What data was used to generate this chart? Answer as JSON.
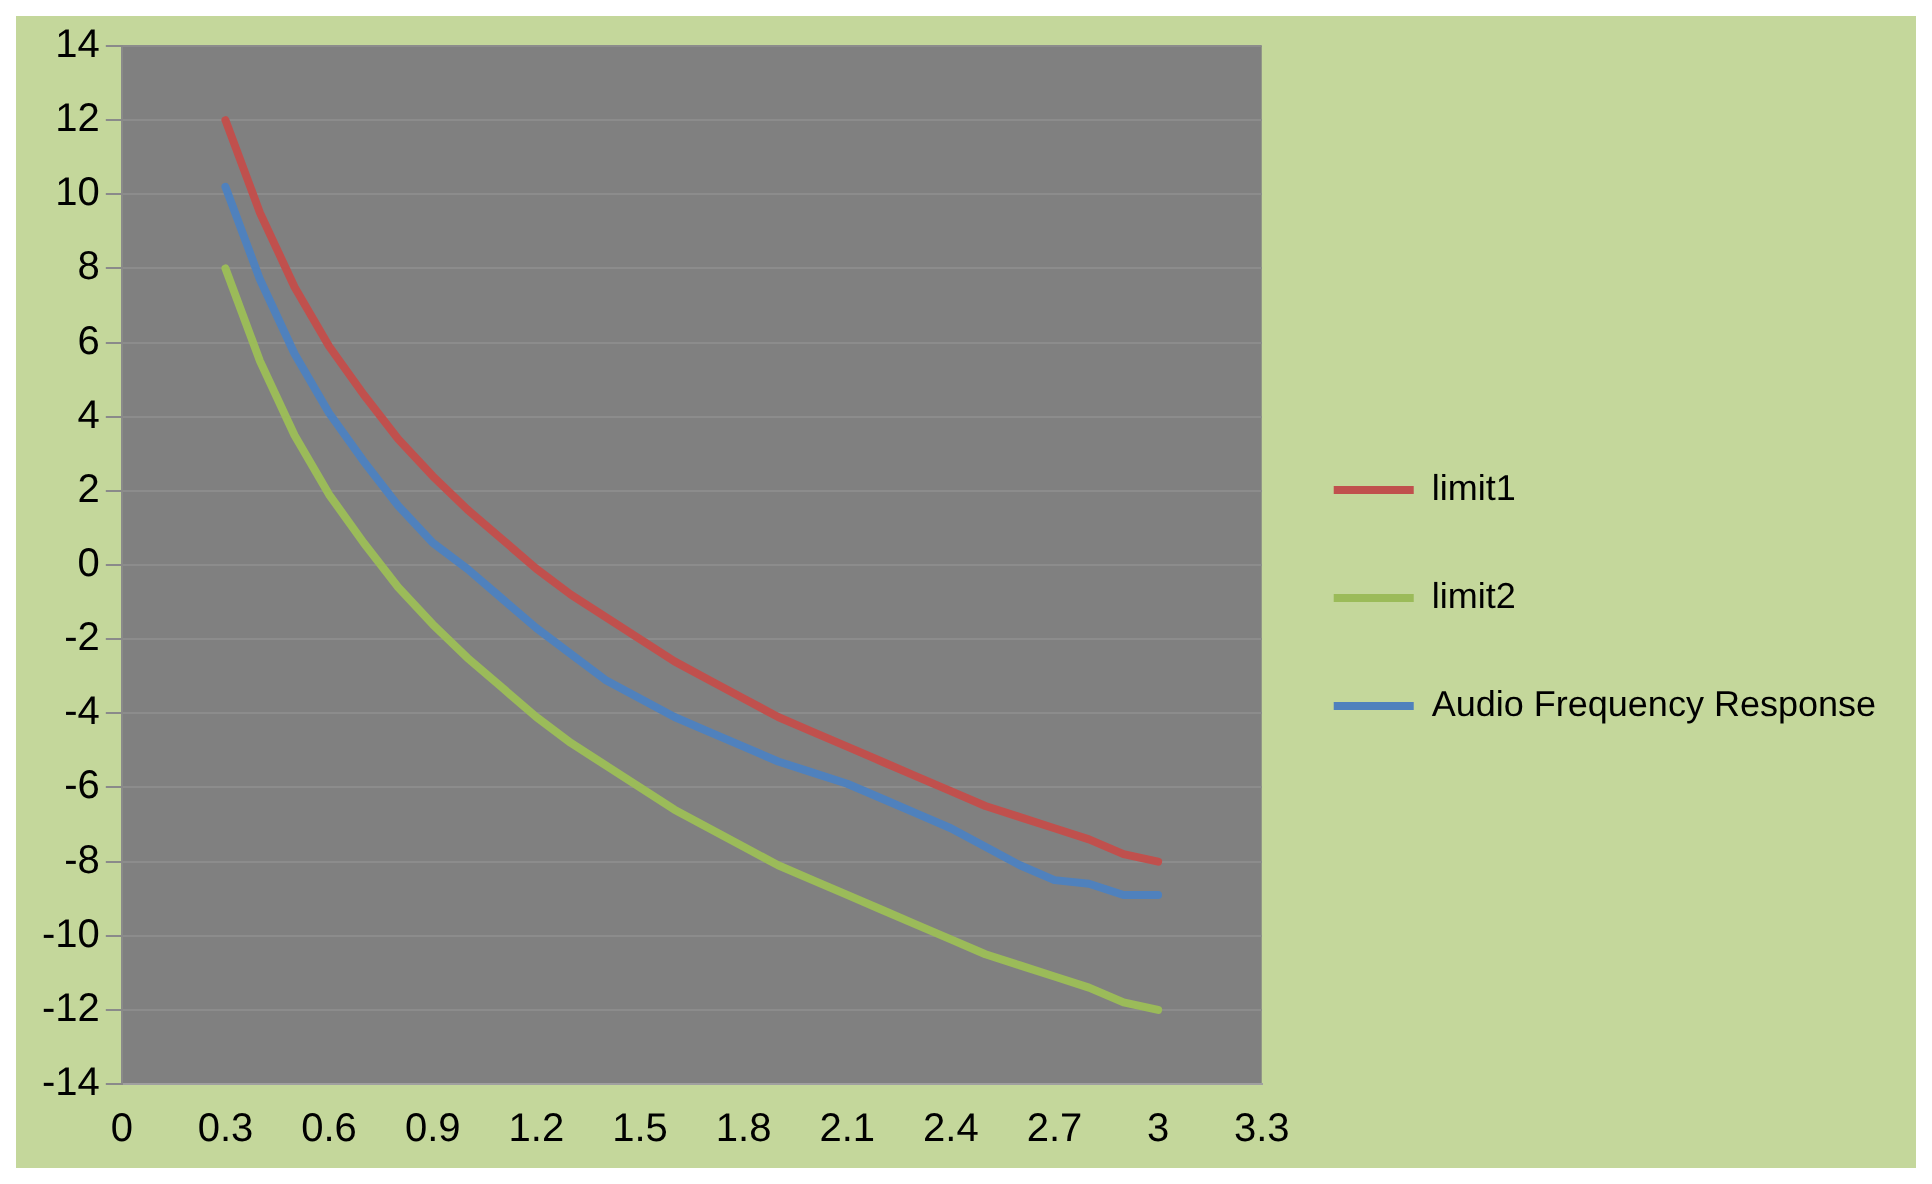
{
  "chart_data": {
    "type": "line",
    "x": [
      0.3,
      0.4,
      0.5,
      0.6,
      0.7,
      0.8,
      0.9,
      1.0,
      1.1,
      1.2,
      1.3,
      1.4,
      1.5,
      1.6,
      1.7,
      1.8,
      1.9,
      2.0,
      2.1,
      2.2,
      2.3,
      2.4,
      2.5,
      2.6,
      2.7,
      2.8,
      2.9,
      3.0
    ],
    "series": [
      {
        "name": "limit1",
        "color": "#c0504d",
        "values": [
          12.0,
          9.5,
          7.5,
          5.9,
          4.6,
          3.4,
          2.4,
          1.5,
          0.7,
          -0.1,
          -0.8,
          -1.4,
          -2.0,
          -2.6,
          -3.1,
          -3.6,
          -4.1,
          -4.5,
          -4.9,
          -5.3,
          -5.7,
          -6.1,
          -6.5,
          -6.8,
          -7.1,
          -7.4,
          -7.8,
          -8.0
        ]
      },
      {
        "name": "limit2",
        "color": "#9bbb59",
        "values": [
          8.0,
          5.5,
          3.5,
          1.9,
          0.6,
          -0.6,
          -1.6,
          -2.5,
          -3.3,
          -4.1,
          -4.8,
          -5.4,
          -6.0,
          -6.6,
          -7.1,
          -7.6,
          -8.1,
          -8.5,
          -8.9,
          -9.3,
          -9.7,
          -10.1,
          -10.5,
          -10.8,
          -11.1,
          -11.4,
          -11.8,
          -12.0
        ]
      },
      {
        "name": "Audio Frequency Response",
        "color": "#4f81bd",
        "values": [
          10.2,
          7.7,
          5.7,
          4.1,
          2.8,
          1.6,
          0.6,
          -0.1,
          -0.9,
          -1.7,
          -2.4,
          -3.1,
          -3.6,
          -4.1,
          -4.5,
          -4.9,
          -5.3,
          -5.6,
          -5.9,
          -6.3,
          -6.7,
          -7.1,
          -7.6,
          -8.1,
          -8.5,
          -8.6,
          -8.9,
          -8.9
        ]
      }
    ],
    "xlim": [
      0,
      3.3
    ],
    "xticks": [
      0,
      0.3,
      0.6,
      0.9,
      1.2,
      1.5,
      1.8,
      2.1,
      2.4,
      2.7,
      3,
      3.3
    ],
    "ylim": [
      -14,
      14
    ],
    "yticks": [
      -14,
      -12,
      -10,
      -8,
      -6,
      -4,
      -2,
      0,
      2,
      4,
      6,
      8,
      10,
      12,
      14
    ],
    "grid": "y",
    "legend": "right",
    "marker": "none",
    "line_style": "solid"
  }
}
